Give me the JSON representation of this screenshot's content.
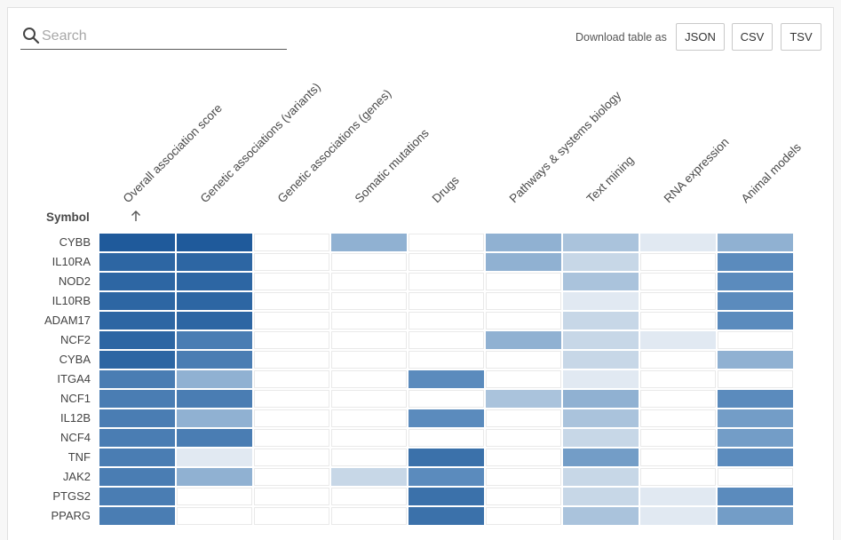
{
  "search": {
    "placeholder": "Search",
    "value": ""
  },
  "download": {
    "label": "Download table as",
    "buttons": [
      "JSON",
      "CSV",
      "TSV"
    ]
  },
  "table": {
    "symbol_header": "Symbol",
    "sort_icon": "arrow-up-icon",
    "columns": [
      "Overall association score",
      "Genetic associations (variants)",
      "Genetic associations (genes)",
      "Somatic mutations",
      "Drugs",
      "Pathways & systems biology",
      "Text mining",
      "RNA expression",
      "Animal models"
    ],
    "colors": {
      "0": "#ffffff",
      "1": "#e1e9f2",
      "2": "#c7d7e7",
      "3": "#aac3dc",
      "4": "#90b1d2",
      "5": "#739dc7",
      "6": "#5b8bbd",
      "7": "#4a7db3",
      "8": "#3b71aa",
      "9": "#2d66a3",
      "10": "#1f5a9b"
    },
    "rows": [
      {
        "symbol": "CYBB",
        "levels": [
          10,
          10,
          0,
          4,
          0,
          4,
          3,
          1,
          4
        ]
      },
      {
        "symbol": "IL10RA",
        "levels": [
          9,
          9,
          0,
          0,
          0,
          4,
          2,
          0,
          6
        ]
      },
      {
        "symbol": "NOD2",
        "levels": [
          9,
          9,
          0,
          0,
          0,
          0,
          3,
          0,
          6
        ]
      },
      {
        "symbol": "IL10RB",
        "levels": [
          9,
          9,
          0,
          0,
          0,
          0,
          1,
          0,
          6
        ]
      },
      {
        "symbol": "ADAM17",
        "levels": [
          9,
          9,
          0,
          0,
          0,
          0,
          2,
          0,
          6
        ]
      },
      {
        "symbol": "NCF2",
        "levels": [
          9,
          7,
          0,
          0,
          0,
          4,
          2,
          1,
          0
        ]
      },
      {
        "symbol": "CYBA",
        "levels": [
          9,
          7,
          0,
          0,
          0,
          0,
          2,
          0,
          4
        ]
      },
      {
        "symbol": "ITGA4",
        "levels": [
          7,
          4,
          0,
          0,
          6,
          0,
          1,
          0,
          0
        ]
      },
      {
        "symbol": "NCF1",
        "levels": [
          7,
          7,
          0,
          0,
          0,
          3,
          4,
          0,
          6
        ]
      },
      {
        "symbol": "IL12B",
        "levels": [
          7,
          4,
          0,
          0,
          6,
          0,
          3,
          0,
          5
        ]
      },
      {
        "symbol": "NCF4",
        "levels": [
          7,
          7,
          0,
          0,
          0,
          0,
          2,
          0,
          5
        ]
      },
      {
        "symbol": "TNF",
        "levels": [
          7,
          1,
          0,
          0,
          8,
          0,
          5,
          0,
          6
        ]
      },
      {
        "symbol": "JAK2",
        "levels": [
          7,
          4,
          0,
          2,
          6,
          0,
          2,
          0,
          0
        ]
      },
      {
        "symbol": "PTGS2",
        "levels": [
          7,
          0,
          0,
          0,
          8,
          0,
          2,
          1,
          6
        ]
      },
      {
        "symbol": "PPARG",
        "levels": [
          7,
          0,
          0,
          0,
          8,
          0,
          3,
          1,
          5
        ]
      }
    ]
  }
}
